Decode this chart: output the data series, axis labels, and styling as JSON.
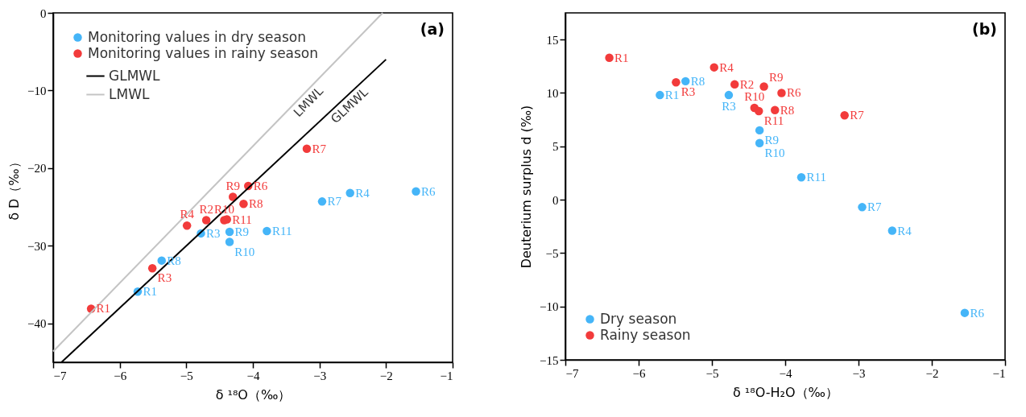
{
  "chart_data": [
    {
      "type": "scatter",
      "title": "(a)",
      "xlabel": "δ ¹⁸O（‰）",
      "ylabel": "δ D（‰）",
      "xlim": [
        -7,
        -1
      ],
      "ylim": [
        -45,
        0
      ],
      "xticks": [
        -7,
        -6,
        -5,
        -4,
        -3,
        -2,
        -1
      ],
      "yticks": [
        -40,
        -30,
        -20,
        -10,
        0
      ],
      "grid": false,
      "legend": "top left",
      "series": [
        {
          "name": "Monitoring values in dry season",
          "marker": "circle",
          "color": "#45b5f8",
          "x": [
            -5.73,
            -4.78,
            -2.54,
            -1.55,
            -2.96,
            -5.37,
            -4.35,
            -4.35,
            -3.79
          ],
          "values": [
            -35.9,
            -28.4,
            -23.2,
            -23.0,
            -24.3,
            -31.9,
            -28.2,
            -29.5,
            -28.1
          ]
        },
        {
          "name": "Monitoring values in rainy season",
          "marker": "circle",
          "color": "#f23b3b",
          "x": [
            -6.43,
            -4.7,
            -5.51,
            -4.99,
            -4.07,
            -3.19,
            -4.14,
            -4.3,
            -4.43,
            -4.39
          ],
          "values": [
            -38.1,
            -26.7,
            -32.9,
            -27.4,
            -22.3,
            -17.5,
            -24.6,
            -23.7,
            -26.7,
            -26.6
          ]
        },
        {
          "name": "GLMWL",
          "type": "line",
          "color": "#000000",
          "line_style": "solid",
          "x": [
            -6.875,
            -2
          ],
          "values": [
            -45,
            -6
          ]
        },
        {
          "name": "LMWL",
          "type": "line",
          "color": "#c4c4c4",
          "line_style": "solid",
          "x": [
            -7,
            -2.05
          ],
          "values": [
            -43.6,
            0
          ]
        }
      ],
      "annotations": [
        {
          "text": "R1",
          "x": -5.73,
          "y": -35.9
        },
        {
          "text": "R3",
          "x": -4.78,
          "y": -28.4
        },
        {
          "text": "R4",
          "x": -2.54,
          "y": -23.2
        },
        {
          "text": "R6",
          "x": -1.55,
          "y": -23.0
        },
        {
          "text": "R7",
          "x": -2.96,
          "y": -24.3
        },
        {
          "text": "R8",
          "x": -5.37,
          "y": -31.9
        },
        {
          "text": "R9",
          "x": -4.35,
          "y": -28.2
        },
        {
          "text": "R10",
          "x": -4.35,
          "y": -29.5
        },
        {
          "text": "R11",
          "x": -3.79,
          "y": -28.1
        },
        {
          "text": "R1",
          "x": -6.43,
          "y": -38.1
        },
        {
          "text": "R2",
          "x": -4.7,
          "y": -26.7
        },
        {
          "text": "R3",
          "x": -5.51,
          "y": -32.9
        },
        {
          "text": "R4",
          "x": -4.99,
          "y": -27.4
        },
        {
          "text": "R6",
          "x": -4.07,
          "y": -22.3
        },
        {
          "text": "R7",
          "x": -3.19,
          "y": -17.5
        },
        {
          "text": "R8",
          "x": -4.14,
          "y": -24.6
        },
        {
          "text": "R9",
          "x": -4.3,
          "y": -23.7
        },
        {
          "text": "R11",
          "x": -4.39,
          "y": -26.6
        },
        {
          "text": "R10",
          "x": -4.43,
          "y": -26.7
        },
        {
          "text": "LMWL",
          "x": -3.26,
          "y": -10.66
        },
        {
          "text": "GLMWL",
          "x": -2.64,
          "y": -11.12
        }
      ]
    },
    {
      "type": "scatter",
      "title": "(b)",
      "xlabel": "δ ¹⁸O-H₂O（‰）",
      "ylabel": "Deuterium surplus d (‰)",
      "xlim": [
        -7,
        -1
      ],
      "ylim": [
        -15,
        17.5
      ],
      "xticks": [
        -7,
        -6,
        -5,
        -4,
        -3,
        -2,
        -1
      ],
      "yticks": [
        -15,
        -10,
        -5,
        0,
        5,
        10,
        15
      ],
      "grid": false,
      "legend": "bottom left",
      "marker": "circle",
      "series": [
        {
          "name": "Dry season",
          "color": "#45b5f8",
          "x": [
            -5.71,
            -5.36,
            -4.77,
            -4.35,
            -4.35,
            -3.78,
            -2.95,
            -2.54,
            -1.55
          ],
          "values": [
            9.8,
            11.1,
            9.8,
            6.5,
            5.3,
            2.1,
            -0.7,
            -2.9,
            -10.6
          ]
        },
        {
          "name": "Rainy season",
          "color": "#f23b3b",
          "x": [
            -6.4,
            -5.49,
            -4.97,
            -4.69,
            -4.29,
            -4.05,
            -4.42,
            -4.36,
            -4.14,
            -3.19
          ],
          "values": [
            13.3,
            11.0,
            12.4,
            10.8,
            10.6,
            10.0,
            8.6,
            8.3,
            8.4,
            7.9
          ]
        }
      ],
      "annotations": [
        {
          "text": "R1",
          "x": -6.4,
          "y": 13.3
        },
        {
          "text": "R3",
          "x": -5.49,
          "y": 11.0
        },
        {
          "text": "R4",
          "x": -4.97,
          "y": 12.4
        },
        {
          "text": "R2",
          "x": -4.69,
          "y": 10.8
        },
        {
          "text": "R9",
          "x": -4.29,
          "y": 10.6
        },
        {
          "text": "R6",
          "x": -4.05,
          "y": 10.0
        },
        {
          "text": "R10",
          "x": -4.42,
          "y": 8.6
        },
        {
          "text": "R11",
          "x": -4.36,
          "y": 8.3
        },
        {
          "text": "R8",
          "x": -4.14,
          "y": 8.4
        },
        {
          "text": "R7",
          "x": -3.19,
          "y": 7.9
        },
        {
          "text": "R1",
          "x": -5.71,
          "y": 9.8
        },
        {
          "text": "R8",
          "x": -5.36,
          "y": 11.1
        },
        {
          "text": "R3",
          "x": -4.77,
          "y": 9.8
        },
        {
          "text": "R9",
          "x": -4.35,
          "y": 6.5
        },
        {
          "text": "R10",
          "x": -4.35,
          "y": 5.3
        },
        {
          "text": "R11",
          "x": -3.78,
          "y": 2.1
        },
        {
          "text": "R7",
          "x": -2.95,
          "y": -0.7
        },
        {
          "text": "R4",
          "x": -2.54,
          "y": -2.9
        },
        {
          "text": "R6",
          "x": -1.55,
          "y": -10.6
        }
      ]
    }
  ]
}
